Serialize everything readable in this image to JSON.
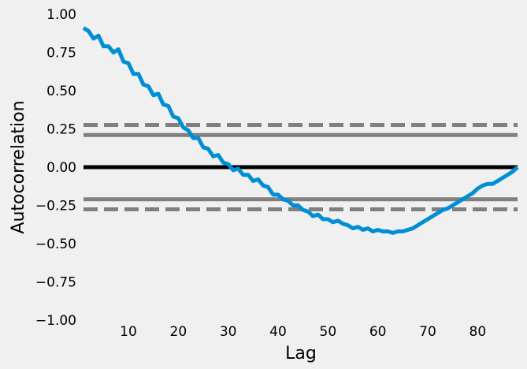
{
  "chart_data": {
    "type": "line",
    "title": "",
    "xlabel": "Lag",
    "ylabel": "Autocorrelation",
    "xlim": [
      1,
      88
    ],
    "ylim": [
      -1.0,
      1.0
    ],
    "x_ticks": [
      10,
      20,
      30,
      40,
      50,
      60,
      70,
      80
    ],
    "y_ticks": [
      1.0,
      0.75,
      0.5,
      0.25,
      0.0,
      -0.25,
      -0.5,
      -0.75,
      -1.0
    ],
    "x_tick_labels": [
      "10",
      "20",
      "30",
      "40",
      "50",
      "60",
      "70",
      "80"
    ],
    "y_tick_labels": [
      "1.00",
      "0.75",
      "0.50",
      "0.25",
      "0.00",
      "−0.25",
      "−0.50",
      "−0.75",
      "−1.00"
    ],
    "grid": false,
    "reference_lines": [
      {
        "y": 0.0,
        "style": "solid",
        "color": "#000000"
      },
      {
        "y": 0.21,
        "style": "solid",
        "color": "#808080"
      },
      {
        "y": -0.21,
        "style": "solid",
        "color": "#808080"
      },
      {
        "y": 0.276,
        "style": "dashed",
        "color": "#808080"
      },
      {
        "y": -0.276,
        "style": "dashed",
        "color": "#808080"
      }
    ],
    "series": [
      {
        "color": "#008fd5",
        "x": [
          1,
          2,
          3,
          4,
          5,
          6,
          7,
          8,
          9,
          10,
          11,
          12,
          13,
          14,
          15,
          16,
          17,
          18,
          19,
          20,
          21,
          22,
          23,
          24,
          25,
          26,
          27,
          28,
          29,
          30,
          31,
          32,
          33,
          34,
          35,
          36,
          37,
          38,
          39,
          40,
          41,
          42,
          43,
          44,
          45,
          46,
          47,
          48,
          49,
          50,
          51,
          52,
          53,
          54,
          55,
          56,
          57,
          58,
          59,
          60,
          61,
          62,
          63,
          64,
          65,
          66,
          67,
          68,
          69,
          70,
          71,
          72,
          73,
          74,
          75,
          76,
          77,
          78,
          79,
          80,
          81,
          82,
          83,
          84,
          85,
          86,
          87,
          88
        ],
        "values": [
          0.91,
          0.89,
          0.84,
          0.86,
          0.79,
          0.79,
          0.75,
          0.77,
          0.69,
          0.68,
          0.61,
          0.61,
          0.54,
          0.53,
          0.47,
          0.48,
          0.41,
          0.4,
          0.33,
          0.32,
          0.26,
          0.24,
          0.19,
          0.19,
          0.13,
          0.12,
          0.07,
          0.08,
          0.03,
          0.02,
          -0.02,
          -0.01,
          -0.05,
          -0.05,
          -0.09,
          -0.08,
          -0.12,
          -0.13,
          -0.18,
          -0.18,
          -0.21,
          -0.22,
          -0.25,
          -0.25,
          -0.28,
          -0.29,
          -0.32,
          -0.31,
          -0.34,
          -0.34,
          -0.36,
          -0.35,
          -0.37,
          -0.38,
          -0.4,
          -0.39,
          -0.41,
          -0.4,
          -0.42,
          -0.41,
          -0.42,
          -0.42,
          -0.43,
          -0.42,
          -0.42,
          -0.41,
          -0.4,
          -0.38,
          -0.36,
          -0.34,
          -0.32,
          -0.3,
          -0.28,
          -0.27,
          -0.25,
          -0.23,
          -0.21,
          -0.19,
          -0.17,
          -0.14,
          -0.12,
          -0.11,
          -0.11,
          -0.09,
          -0.07,
          -0.05,
          -0.03,
          0.0
        ]
      }
    ]
  }
}
